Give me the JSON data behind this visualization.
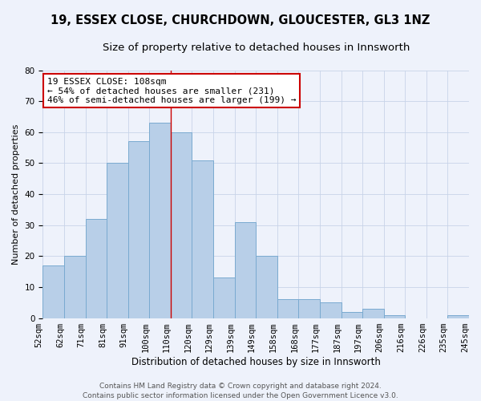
{
  "title": "19, ESSEX CLOSE, CHURCHDOWN, GLOUCESTER, GL3 1NZ",
  "subtitle": "Size of property relative to detached houses in Innsworth",
  "xlabel": "Distribution of detached houses by size in Innsworth",
  "ylabel": "Number of detached properties",
  "bar_values": [
    17,
    20,
    32,
    50,
    57,
    63,
    60,
    51,
    13,
    31,
    20,
    6,
    6,
    5,
    2,
    3,
    1,
    0,
    0,
    1
  ],
  "categories": [
    "52sqm",
    "62sqm",
    "71sqm",
    "81sqm",
    "91sqm",
    "100sqm",
    "110sqm",
    "120sqm",
    "129sqm",
    "139sqm",
    "149sqm",
    "158sqm",
    "168sqm",
    "177sqm",
    "187sqm",
    "197sqm",
    "206sqm",
    "216sqm",
    "226sqm",
    "235sqm",
    "245sqm"
  ],
  "bar_color": "#b8cfe8",
  "bar_edge_color": "#7aaad0",
  "vline_x_index": 5.5,
  "vline_color": "#cc0000",
  "annotation_line1": "19 ESSEX CLOSE: 108sqm",
  "annotation_line2": "← 54% of detached houses are smaller (231)",
  "annotation_line3": "46% of semi-detached houses are larger (199) →",
  "annotation_box_color": "white",
  "annotation_box_edge_color": "#cc0000",
  "ylim": [
    0,
    80
  ],
  "yticks": [
    0,
    10,
    20,
    30,
    40,
    50,
    60,
    70,
    80
  ],
  "grid_color": "#c8d4e8",
  "footer_text": "Contains HM Land Registry data © Crown copyright and database right 2024.\nContains public sector information licensed under the Open Government Licence v3.0.",
  "bg_color": "#eef2fb",
  "title_fontsize": 10.5,
  "subtitle_fontsize": 9.5,
  "xlabel_fontsize": 8.5,
  "ylabel_fontsize": 8,
  "tick_fontsize": 7.5,
  "annot_fontsize": 8,
  "footer_fontsize": 6.5
}
